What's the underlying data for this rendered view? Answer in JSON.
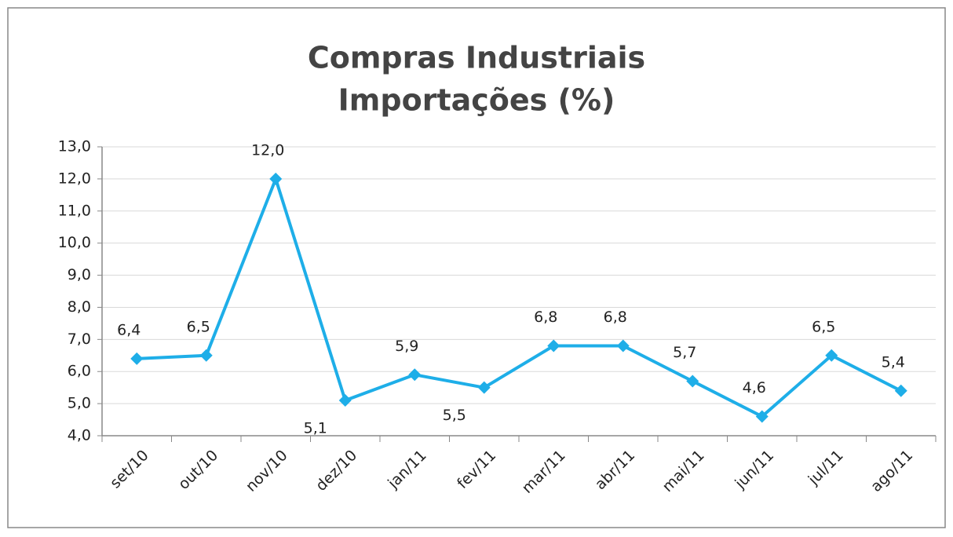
{
  "chart_data": {
    "type": "line",
    "title": [
      "Compras Industriais",
      "Importações (%)"
    ],
    "categories": [
      "set/10",
      "out/10",
      "nov/10",
      "dez/10",
      "jan/11",
      "fev/11",
      "mar/11",
      "abr/11",
      "mai/11",
      "jun/11",
      "jul/11",
      "ago/11"
    ],
    "series": [
      {
        "color": "#1eaee8",
        "values": [
          6.4,
          6.5,
          12.0,
          5.1,
          5.9,
          5.5,
          6.8,
          6.8,
          5.7,
          4.6,
          6.5,
          5.4
        ],
        "value_labels": [
          "6,4",
          "6,5",
          "12,0",
          "5,1",
          "5,9",
          "5,5",
          "6,8",
          "6,8",
          "5,7",
          "4,6",
          "6,5",
          "5,4"
        ]
      }
    ],
    "ylim": [
      4,
      13
    ],
    "yticks": [
      {
        "value": 4,
        "label": "4,0"
      },
      {
        "value": 5,
        "label": "5,0"
      },
      {
        "value": 6,
        "label": "6,0"
      },
      {
        "value": 7,
        "label": "7,0"
      },
      {
        "value": 8,
        "label": "8,0"
      },
      {
        "value": 9,
        "label": "9,0"
      },
      {
        "value": 10,
        "label": "10,0"
      },
      {
        "value": 11,
        "label": "11,0"
      },
      {
        "value": 12,
        "label": "12,0"
      },
      {
        "value": 13,
        "label": "13,0"
      }
    ],
    "grid": true
  }
}
